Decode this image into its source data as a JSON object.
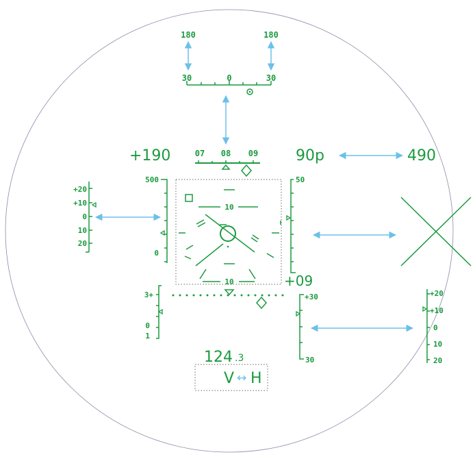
{
  "heading_scale": {
    "top_ticks": [
      "30",
      "0",
      "30"
    ],
    "top_limits": [
      "180",
      "180"
    ],
    "ribbon_labels": [
      "07",
      "08",
      "09"
    ]
  },
  "readouts": {
    "airspeed": "+190",
    "heading_mode": "90p",
    "altitude_digital": "490",
    "frequency_main": "124",
    "frequency_decimal": ".3",
    "mode_v": "V",
    "mode_arrow": "↔",
    "mode_h": "H",
    "vs_readout": "+09"
  },
  "pitch_ladder": {
    "top": "10",
    "bottom": "10"
  },
  "left_tape": {
    "top": "500",
    "bottom": "0"
  },
  "right_tape": {
    "top": "50"
  },
  "left_mini_scale": [
    "+20",
    "+10",
    "0",
    "10",
    "20"
  ],
  "lower_left_scale": [
    "3+",
    "0",
    "1"
  ],
  "lower_right_scale": [
    "+30",
    "30"
  ],
  "far_right_scale": [
    "+20",
    "+10",
    "0",
    "10",
    "20"
  ],
  "colors": {
    "symbology": "#1a9a3e",
    "annotation_arrows": "#6cc0e8",
    "display_boundary": "#8a8aa8"
  }
}
